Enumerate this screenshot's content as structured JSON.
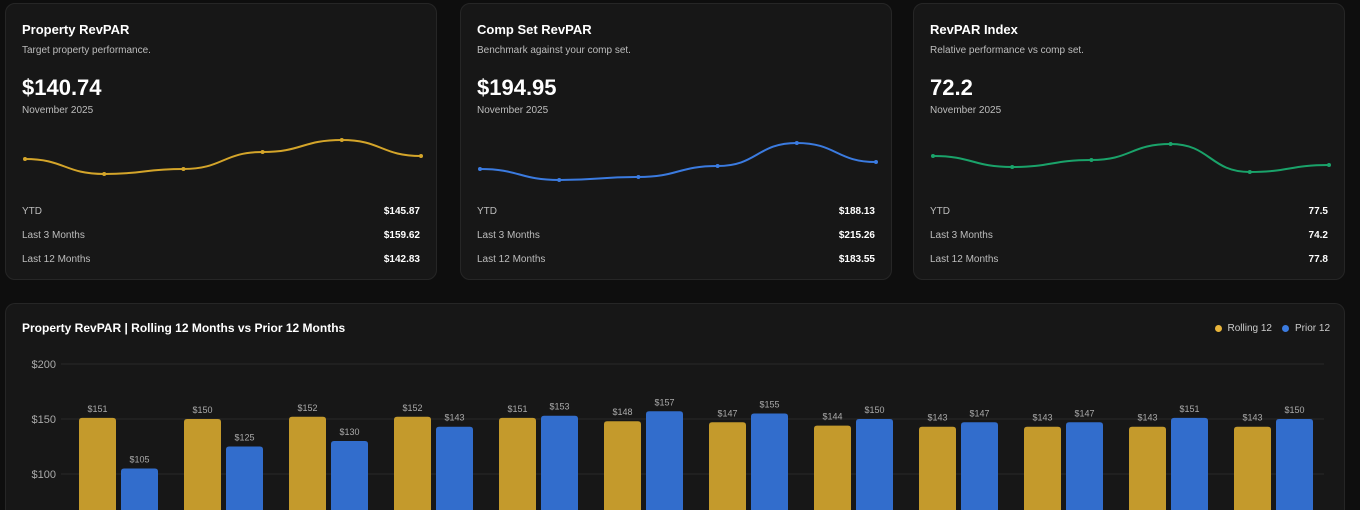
{
  "cards": [
    {
      "title": "Property RevPAR",
      "subtitle": "Target property performance.",
      "value": "$140.74",
      "period": "November 2025",
      "color": "#d4a52a",
      "rows": [
        {
          "label": "YTD",
          "value": "$145.87"
        },
        {
          "label": "Last 3 Months",
          "value": "$159.62"
        },
        {
          "label": "Last 12 Months",
          "value": "$142.83"
        }
      ]
    },
    {
      "title": "Comp Set RevPAR",
      "subtitle": "Benchmark against your comp set.",
      "value": "$194.95",
      "period": "November 2025",
      "color": "#3b7be0",
      "rows": [
        {
          "label": "YTD",
          "value": "$188.13"
        },
        {
          "label": "Last 3 Months",
          "value": "$215.26"
        },
        {
          "label": "Last 12 Months",
          "value": "$183.55"
        }
      ]
    },
    {
      "title": "RevPAR Index",
      "subtitle": "Relative performance vs comp set.",
      "value": "72.2",
      "period": "November 2025",
      "color": "#1aa36a",
      "rows": [
        {
          "label": "YTD",
          "value": "77.5"
        },
        {
          "label": "Last 3 Months",
          "value": "74.2"
        },
        {
          "label": "Last 12 Months",
          "value": "77.8"
        }
      ]
    }
  ],
  "chart_data": {
    "type": "bar",
    "title": "Property RevPAR | Rolling 12 Months vs Prior 12 Months",
    "legend_position": "top-right",
    "grid": true,
    "ylim": [
      0,
      200
    ],
    "yticks": [
      "$200",
      "$150",
      "$100"
    ],
    "series": [
      {
        "name": "Rolling 12",
        "color": "#c49a2c",
        "values": [
          151,
          150,
          152,
          152,
          151,
          148,
          147,
          144,
          143,
          143,
          143,
          143
        ],
        "labels": [
          "$151",
          "$150",
          "$152",
          "$152",
          "$151",
          "$148",
          "$147",
          "$144",
          "$143",
          "$143",
          "$143",
          "$143"
        ]
      },
      {
        "name": "Prior 12",
        "color": "#326dcc",
        "values": [
          105,
          125,
          130,
          143,
          153,
          157,
          155,
          150,
          147,
          147,
          151,
          150
        ],
        "labels": [
          "$105",
          "$125",
          "$130",
          "$143",
          "$153",
          "$157",
          "$155",
          "$150",
          "$147",
          "$147",
          "$151",
          "$150"
        ]
      }
    ]
  }
}
